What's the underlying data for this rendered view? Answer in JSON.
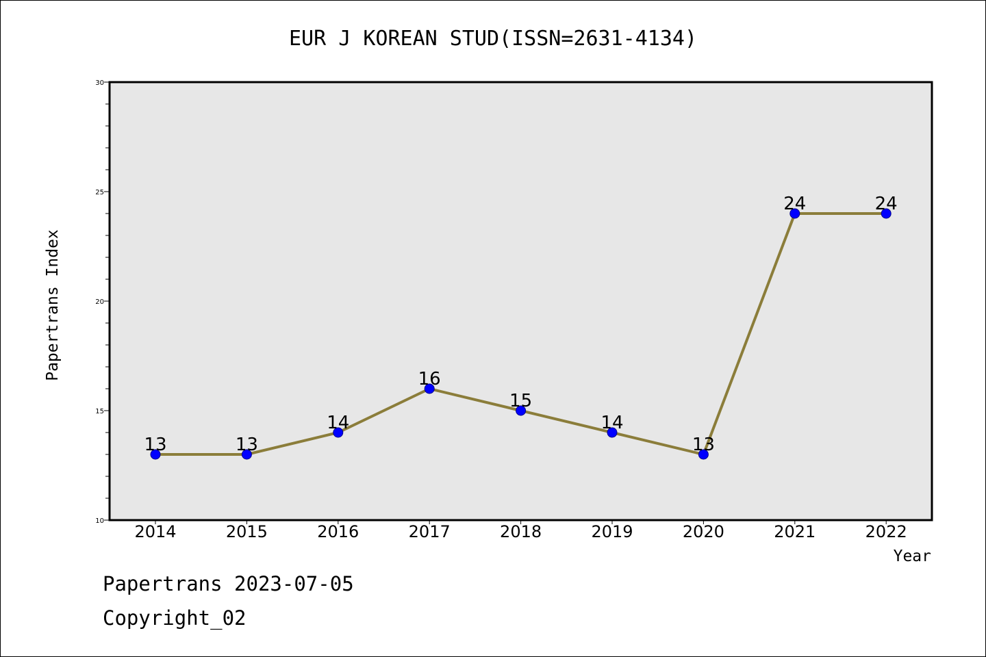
{
  "chart_data": {
    "type": "line",
    "title": "EUR J KOREAN STUD(ISSN=2631-4134)",
    "xlabel": "Year",
    "ylabel": "Papertrans Index",
    "categories": [
      "2014",
      "2015",
      "2016",
      "2017",
      "2018",
      "2019",
      "2020",
      "2021",
      "2022"
    ],
    "values": [
      13,
      13,
      14,
      16,
      15,
      14,
      13,
      24,
      24
    ],
    "data_labels": [
      "13",
      "13",
      "14",
      "16",
      "15",
      "14",
      "13",
      "24",
      "24"
    ],
    "ylim": [
      10,
      30
    ],
    "yticks": [
      "10",
      "15",
      "20",
      "25",
      "30"
    ],
    "grid": false,
    "colors": {
      "line": "#8B7D3A",
      "marker": "#0000FF",
      "plot_background": "#E7E7E7"
    }
  },
  "footer": {
    "line1": "Papertrans 2023-07-05",
    "line2": "Copyright_02"
  }
}
